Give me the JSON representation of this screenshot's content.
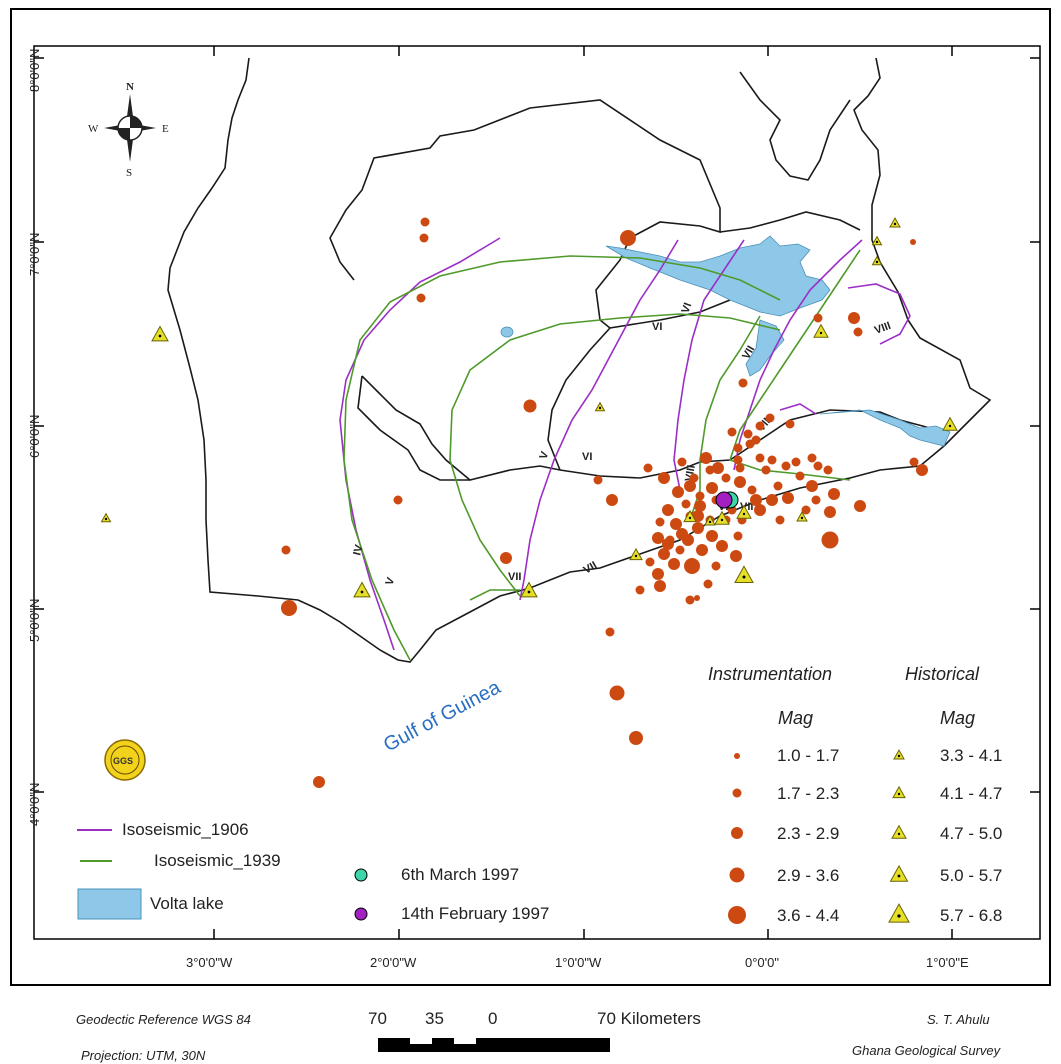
{
  "map": {
    "axis_labels": {
      "lat": [
        "8°0'0\"N",
        "7°0'0\"N",
        "6°0'0\"N",
        "5°0'0\"N",
        "4°0'0\"N"
      ],
      "lon": [
        "3°0'0\"W",
        "2°0'0\"W",
        "1°0'0\"W",
        "0°0'0\"",
        "1°0'0\"E"
      ]
    },
    "compass": {
      "n": "N",
      "s": "S",
      "e": "E",
      "w": "W"
    },
    "sea_label": "Gulf of Guinea",
    "intensity_labels": [
      "IV",
      "V",
      "VI",
      "VII",
      "VIII",
      "VI",
      "VII",
      "V",
      "VI",
      "VII",
      "VIII",
      "VII",
      "VIII",
      "VII"
    ],
    "colors": {
      "instrumental": "#cc4a12",
      "historical": "#e6df2a",
      "isoseismic_1906": "#9b2fc6",
      "isoseismic_1939": "#4f9a2a",
      "volta_lake": "#8ec8e8",
      "event_1997_03_06": "#3ed6a8",
      "event_1997_02_14": "#a21fc2"
    },
    "logo_text": "GGS"
  },
  "legend": {
    "lines": [
      {
        "label": "Isoseismic_1906",
        "color": "#9b2fc6"
      },
      {
        "label": "Isoseismic_1939",
        "color": "#4f9a2a"
      },
      {
        "label": "Volta lake",
        "color": "#8ec8e8"
      }
    ],
    "events": [
      {
        "label": "6th March 1997",
        "color": "#3ed6a8"
      },
      {
        "label": "14th February 1997",
        "color": "#a21fc2"
      }
    ],
    "instrumentation": {
      "title": "Instrumentation",
      "sub": "Mag",
      "classes": [
        "1.0 - 1.7",
        "1.7 - 2.3",
        "2.3 - 2.9",
        "2.9 - 3.6",
        "3.6 - 4.4"
      ]
    },
    "historical": {
      "title": "Historical",
      "sub": "Mag",
      "classes": [
        "3.3 - 4.1",
        "4.1 - 4.7",
        "4.7 - 5.0",
        "5.0 - 5.7",
        "5.7 - 6.8"
      ]
    }
  },
  "footer": {
    "datum": "Geodectic Reference WGS 84",
    "projection": "Projection: UTM, 30N",
    "author": "S. T. Ahulu",
    "org": "Ghana Geological Survey",
    "scale": {
      "ticks": [
        "70",
        "35",
        "0",
        "70 Kilometers"
      ]
    }
  }
}
